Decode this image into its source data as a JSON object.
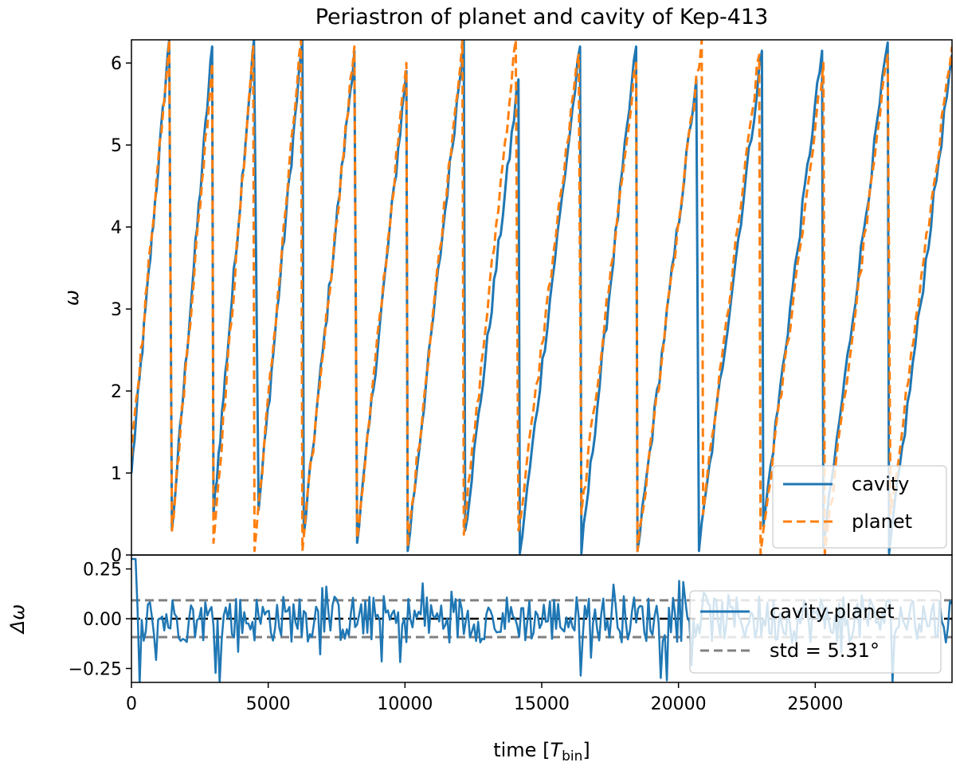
{
  "chart_data": [
    {
      "type": "line",
      "panel": "top",
      "title": "Periastron of planet and cavity of Kep-413",
      "xlabel": "",
      "ylabel": "ω",
      "xlim": [
        0,
        30000
      ],
      "ylim": [
        0,
        6.283
      ],
      "yticks": [
        0,
        1,
        2,
        3,
        4,
        5,
        6
      ],
      "ytick_labels": [
        "0",
        "1",
        "2",
        "3",
        "4",
        "5",
        "6"
      ],
      "legend_loc": "lower-right",
      "series": [
        {
          "name": "cavity",
          "style": "solid",
          "color": "#1f77b4",
          "cycles": [
            {
              "t0": 0,
              "w0": 1.0,
              "t1": 1380,
              "w1": 6.28
            },
            {
              "t0": 1480,
              "w0": 0.3,
              "t1": 2950,
              "w1": 6.2
            },
            {
              "t0": 3000,
              "w0": 0.5,
              "t1": 4480,
              "w1": 6.28
            },
            {
              "t0": 4650,
              "w0": 0.55,
              "t1": 6250,
              "w1": 6.28
            },
            {
              "t0": 6300,
              "w0": 0.25,
              "t1": 8150,
              "w1": 6.15
            },
            {
              "t0": 8250,
              "w0": 0.15,
              "t1": 10050,
              "w1": 5.9
            },
            {
              "t0": 10100,
              "w0": 0.05,
              "t1": 12150,
              "w1": 6.28
            },
            {
              "t0": 12200,
              "w0": 0.3,
              "t1": 14150,
              "w1": 5.8
            },
            {
              "t0": 14200,
              "w0": 0.02,
              "t1": 16400,
              "w1": 6.2
            },
            {
              "t0": 16450,
              "w0": 0.02,
              "t1": 18450,
              "w1": 6.2
            },
            {
              "t0": 18500,
              "w0": 0.05,
              "t1": 20650,
              "w1": 5.8
            },
            {
              "t0": 20750,
              "w0": 0.05,
              "t1": 23050,
              "w1": 6.15
            },
            {
              "t0": 23100,
              "w0": 0.35,
              "t1": 25250,
              "w1": 6.15
            },
            {
              "t0": 25300,
              "w0": 0.1,
              "t1": 27650,
              "w1": 6.25
            },
            {
              "t0": 27700,
              "w0": 0.02,
              "t1": 30000,
              "w1": 6.1
            }
          ]
        },
        {
          "name": "planet",
          "style": "dashed",
          "color": "#ff7f0e",
          "cycles": [
            {
              "t0": 0,
              "w0": 1.2,
              "t1": 1380,
              "w1": 6.28
            },
            {
              "t0": 1480,
              "w0": 0.3,
              "t1": 2950,
              "w1": 6.0
            },
            {
              "t0": 3000,
              "w0": 0.15,
              "t1": 4450,
              "w1": 6.2
            },
            {
              "t0": 4500,
              "w0": 0.05,
              "t1": 6200,
              "w1": 6.28
            },
            {
              "t0": 6250,
              "w0": 0.05,
              "t1": 8150,
              "w1": 6.2
            },
            {
              "t0": 8250,
              "w0": 0.2,
              "t1": 10050,
              "w1": 6.0
            },
            {
              "t0": 10100,
              "w0": 0.1,
              "t1": 12100,
              "w1": 6.28
            },
            {
              "t0": 12150,
              "w0": 0.25,
              "t1": 14050,
              "w1": 6.28
            },
            {
              "t0": 14150,
              "w0": 0.3,
              "t1": 16350,
              "w1": 6.1
            },
            {
              "t0": 16450,
              "w0": 0.5,
              "t1": 18450,
              "w1": 6.0
            },
            {
              "t0": 18500,
              "w0": 0.05,
              "t1": 20850,
              "w1": 6.28
            },
            {
              "t0": 20900,
              "w0": 0.5,
              "t1": 22950,
              "w1": 6.1
            },
            {
              "t0": 23000,
              "w0": 0.01,
              "t1": 25300,
              "w1": 6.0
            },
            {
              "t0": 25350,
              "w0": 0.01,
              "t1": 27650,
              "w1": 6.1
            },
            {
              "t0": 27750,
              "w0": 0.5,
              "t1": 30000,
              "w1": 6.2
            }
          ]
        }
      ]
    },
    {
      "type": "line",
      "panel": "bottom",
      "xlabel": "time [T_bin]",
      "xlabel_parts": {
        "main": "time [",
        "var": "T",
        "sub": "bin",
        "close": "]"
      },
      "ylabel": "Δω",
      "xlim": [
        0,
        30000
      ],
      "ylim": [
        -0.32,
        0.32
      ],
      "xticks": [
        0,
        5000,
        10000,
        15000,
        20000,
        25000
      ],
      "xtick_labels": [
        "0",
        "5000",
        "10000",
        "15000",
        "20000",
        "25000"
      ],
      "yticks": [
        -0.25,
        0.0,
        0.25
      ],
      "ytick_labels": [
        "−0.25",
        "0.00",
        "0.25"
      ],
      "std_band": 0.0927,
      "zero_line": 0,
      "legend_loc": "right",
      "series": [
        {
          "name": "cavity-planet",
          "style": "solid",
          "color": "#1f77b4",
          "noise_amplitude": 0.12,
          "samples": 400
        },
        {
          "name": "std = 5.31°",
          "style": "dashed",
          "color": "#808080"
        }
      ]
    }
  ],
  "colors": {
    "cavity": "#1f77b4",
    "planet": "#ff7f0e",
    "std": "#808080",
    "zero": "#000000"
  }
}
